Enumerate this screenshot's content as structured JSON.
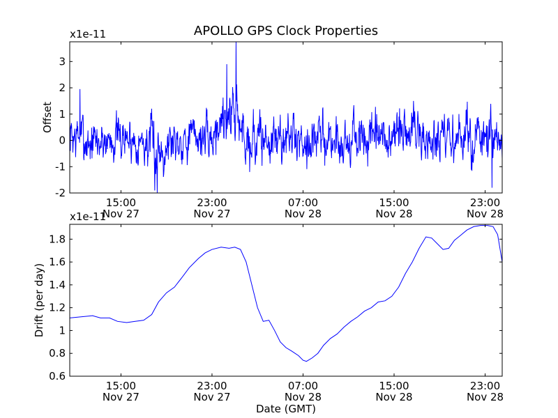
{
  "figure": {
    "title": "APOLLO GPS Clock Properties",
    "xlabel": "Date (GMT)"
  },
  "chart_data": [
    {
      "type": "line",
      "title": "APOLLO GPS Clock Properties",
      "ylabel": "Offset",
      "scale_label": "x1e-11",
      "xlabel": "",
      "x_unit": "hours since 15:00 Nov 27",
      "xlim": [
        -4.5,
        33.5
      ],
      "ylim": [
        -2,
        3.75
      ],
      "x_ticks": [
        {
          "x": 0,
          "time": "15:00",
          "date": "Nov 27"
        },
        {
          "x": 8,
          "time": "23:00",
          "date": "Nov 27"
        },
        {
          "x": 16,
          "time": "07:00",
          "date": "Nov 28"
        },
        {
          "x": 24,
          "time": "15:00",
          "date": "Nov 28"
        },
        {
          "x": 32,
          "time": "23:00",
          "date": "Nov 28"
        }
      ],
      "y_ticks": [
        -2,
        -1,
        0,
        1,
        2,
        3
      ],
      "grid": false,
      "color": "#0000ff",
      "series": [
        {
          "noisy": true,
          "points": [
            [
              -4.5,
              0.15,
              0.8
            ],
            [
              -3.5,
              0.1,
              0.9
            ],
            [
              -2.5,
              -0.1,
              0.85
            ],
            [
              -1.5,
              0.0,
              0.75
            ],
            [
              -0.5,
              0.1,
              0.8
            ],
            [
              0.5,
              0.05,
              0.75
            ],
            [
              1.5,
              0.0,
              0.7
            ],
            [
              2.5,
              -0.2,
              0.85
            ],
            [
              3.0,
              -0.4,
              1.2
            ],
            [
              3.5,
              -0.3,
              0.9
            ],
            [
              4.5,
              0.0,
              0.8
            ],
            [
              5.5,
              0.1,
              0.8
            ],
            [
              6.5,
              0.2,
              0.75
            ],
            [
              7.5,
              0.1,
              0.75
            ],
            [
              8.0,
              0.0,
              0.7
            ],
            [
              8.5,
              0.6,
              0.9
            ],
            [
              9.0,
              1.0,
              1.1
            ],
            [
              9.5,
              0.8,
              1.0
            ],
            [
              10.0,
              1.5,
              1.3
            ],
            [
              10.5,
              0.3,
              1.0
            ],
            [
              11.5,
              0.1,
              0.9
            ],
            [
              12.5,
              0.0,
              0.9
            ],
            [
              13.5,
              0.0,
              0.9
            ],
            [
              14.5,
              0.1,
              0.8
            ],
            [
              15.5,
              0.1,
              0.8
            ],
            [
              16.5,
              0.0,
              0.8
            ],
            [
              17.5,
              0.1,
              0.85
            ],
            [
              18.5,
              0.0,
              0.9
            ],
            [
              19.5,
              -0.1,
              0.85
            ],
            [
              20.5,
              0.1,
              0.9
            ],
            [
              21.5,
              0.0,
              0.8
            ],
            [
              22.5,
              0.0,
              0.85
            ],
            [
              23.5,
              0.0,
              0.85
            ],
            [
              24.5,
              0.2,
              0.9
            ],
            [
              25.5,
              0.4,
              1.0
            ],
            [
              26.0,
              0.5,
              1.1
            ],
            [
              26.5,
              0.0,
              0.9
            ],
            [
              27.5,
              -0.1,
              0.85
            ],
            [
              28.5,
              0.0,
              0.8
            ],
            [
              29.5,
              0.0,
              0.8
            ],
            [
              30.5,
              0.2,
              0.85
            ],
            [
              31.5,
              0.0,
              0.9
            ],
            [
              32.5,
              -0.1,
              1.0
            ],
            [
              33.5,
              -0.2,
              0.8
            ]
          ],
          "spikes": [
            [
              -3.6,
              1.95
            ],
            [
              3.2,
              -2.0
            ],
            [
              9.3,
              2.9
            ],
            [
              10.1,
              3.75
            ],
            [
              11.3,
              -1.2
            ],
            [
              25.7,
              1.5
            ],
            [
              32.6,
              -1.8
            ]
          ]
        }
      ]
    },
    {
      "type": "line",
      "title": "",
      "ylabel": "Drift (per day)",
      "scale_label": "x1e-11",
      "xlabel": "Date (GMT)",
      "x_unit": "hours since 15:00 Nov 27",
      "xlim": [
        -4.5,
        33.5
      ],
      "ylim": [
        0.6,
        1.93
      ],
      "x_ticks": [
        {
          "x": 0,
          "time": "15:00",
          "date": "Nov 27"
        },
        {
          "x": 8,
          "time": "23:00",
          "date": "Nov 27"
        },
        {
          "x": 16,
          "time": "07:00",
          "date": "Nov 28"
        },
        {
          "x": 24,
          "time": "15:00",
          "date": "Nov 28"
        },
        {
          "x": 32,
          "time": "23:00",
          "date": "Nov 28"
        }
      ],
      "y_ticks": [
        0.6,
        0.8,
        1.0,
        1.2,
        1.4,
        1.6,
        1.8
      ],
      "grid": false,
      "color": "#0000ff",
      "series": [
        {
          "noisy": false,
          "points": [
            [
              -4.5,
              1.11
            ],
            [
              -3.5,
              1.12
            ],
            [
              -2.5,
              1.13
            ],
            [
              -1.8,
              1.11
            ],
            [
              -1.0,
              1.11
            ],
            [
              -0.3,
              1.08
            ],
            [
              0.5,
              1.07
            ],
            [
              1.2,
              1.08
            ],
            [
              2.0,
              1.09
            ],
            [
              2.7,
              1.14
            ],
            [
              3.3,
              1.25
            ],
            [
              4.0,
              1.33
            ],
            [
              4.7,
              1.38
            ],
            [
              5.4,
              1.47
            ],
            [
              6.0,
              1.55
            ],
            [
              6.8,
              1.63
            ],
            [
              7.4,
              1.68
            ],
            [
              8.0,
              1.71
            ],
            [
              8.8,
              1.73
            ],
            [
              9.5,
              1.72
            ],
            [
              10.0,
              1.73
            ],
            [
              10.5,
              1.71
            ],
            [
              11.0,
              1.6
            ],
            [
              11.5,
              1.4
            ],
            [
              12.0,
              1.2
            ],
            [
              12.5,
              1.08
            ],
            [
              13.0,
              1.09
            ],
            [
              13.5,
              1.0
            ],
            [
              14.0,
              0.9
            ],
            [
              14.5,
              0.85
            ],
            [
              15.0,
              0.82
            ],
            [
              15.6,
              0.78
            ],
            [
              16.0,
              0.74
            ],
            [
              16.3,
              0.73
            ],
            [
              16.8,
              0.76
            ],
            [
              17.3,
              0.8
            ],
            [
              17.8,
              0.87
            ],
            [
              18.4,
              0.93
            ],
            [
              19.0,
              0.97
            ],
            [
              19.6,
              1.03
            ],
            [
              20.2,
              1.08
            ],
            [
              20.8,
              1.12
            ],
            [
              21.4,
              1.17
            ],
            [
              22.0,
              1.2
            ],
            [
              22.6,
              1.25
            ],
            [
              23.2,
              1.26
            ],
            [
              23.8,
              1.3
            ],
            [
              24.4,
              1.38
            ],
            [
              25.0,
              1.5
            ],
            [
              25.6,
              1.6
            ],
            [
              26.2,
              1.72
            ],
            [
              26.8,
              1.82
            ],
            [
              27.3,
              1.81
            ],
            [
              27.8,
              1.76
            ],
            [
              28.3,
              1.71
            ],
            [
              28.8,
              1.72
            ],
            [
              29.3,
              1.79
            ],
            [
              29.8,
              1.83
            ],
            [
              30.4,
              1.88
            ],
            [
              31.0,
              1.91
            ],
            [
              31.6,
              1.92
            ],
            [
              32.2,
              1.92
            ],
            [
              32.7,
              1.91
            ],
            [
              33.1,
              1.84
            ],
            [
              33.5,
              1.6
            ]
          ]
        }
      ]
    }
  ]
}
